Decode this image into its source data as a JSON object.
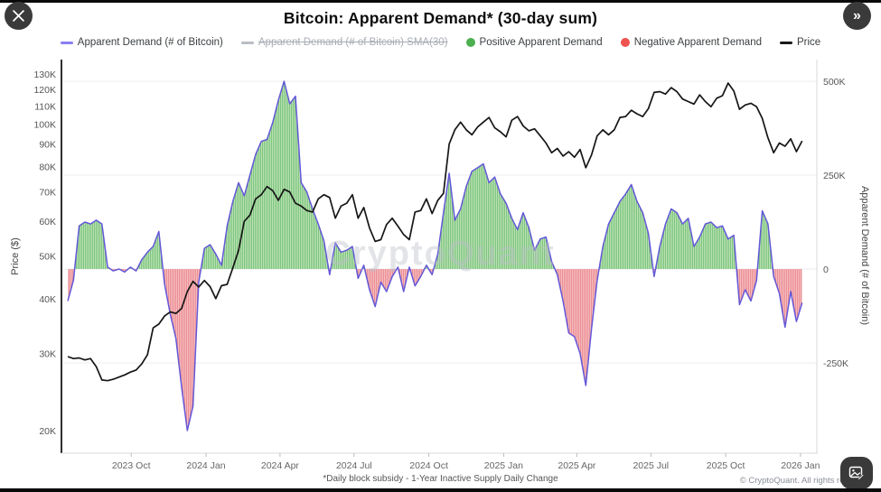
{
  "title": "Bitcoin: Apparent Demand* (30-day sum)",
  "watermark": "CryptoQuant",
  "footnote": "*Daily block subsidy - 1-Year Inactive Supply Daily Change",
  "copyright": "© CryptoQuant. All rights reserved",
  "buttons": {
    "close": "✕",
    "collapse_right": "»"
  },
  "legend": {
    "items": [
      {
        "label": "Apparent Demand (# of Bitcoin)",
        "swatch": "line",
        "color": "#8a7ff0",
        "struck": false
      },
      {
        "label": "Apparent Demand (# of Bitcoin) SMA(30)",
        "swatch": "line",
        "color": "#b9bdc4",
        "struck": true
      },
      {
        "label": "Positive Apparent Demand",
        "swatch": "dot",
        "color": "#4caf50",
        "struck": false
      },
      {
        "label": "Negative Apparent Demand",
        "swatch": "dot",
        "color": "#ef5350",
        "struck": false
      },
      {
        "label": "Price",
        "swatch": "line",
        "color": "#1a1a1a",
        "struck": false
      }
    ]
  },
  "colors": {
    "demand_line": "#6458d8",
    "positive_fill": "#bce2b4",
    "positive_stripe": "#7cc47e",
    "negative_fill": "#f6bcbf",
    "negative_stripe": "#ea8f94",
    "price_line": "#161616",
    "grid": "#ededf1",
    "axis_left": "#2f2f2f",
    "axis_light": "#d9d9de",
    "tick_text": "#555555",
    "x_text": "#666666"
  },
  "chart_data": {
    "type": "area",
    "title": "Bitcoin: Apparent Demand* (30-day sum)",
    "step_days": 7,
    "x_ticks": [
      {
        "label": "2023 Oct",
        "day": 78
      },
      {
        "label": "2024 Jan",
        "day": 170
      },
      {
        "label": "2024 Apr",
        "day": 261
      },
      {
        "label": "2024 Jul",
        "day": 352
      },
      {
        "label": "2024 Oct",
        "day": 444
      },
      {
        "label": "2025 Jan",
        "day": 536
      },
      {
        "label": "2025 Apr",
        "day": 626
      },
      {
        "label": "2025 Jul",
        "day": 717
      },
      {
        "label": "2025 Oct",
        "day": 809
      },
      {
        "label": "2026 Jan",
        "day": 901
      }
    ],
    "price_axis": {
      "title": "Price ($)",
      "scale": "log",
      "ticks": [
        {
          "label": "130K",
          "value": 130
        },
        {
          "label": "120K",
          "value": 120
        },
        {
          "label": "110K",
          "value": 110
        },
        {
          "label": "100K",
          "value": 100
        },
        {
          "label": "90K",
          "value": 90
        },
        {
          "label": "80K",
          "value": 80
        },
        {
          "label": "70K",
          "value": 70
        },
        {
          "label": "60K",
          "value": 60
        },
        {
          "label": "50K",
          "value": 50
        },
        {
          "label": "40K",
          "value": 40
        },
        {
          "label": "30K",
          "value": 30
        },
        {
          "label": "20K",
          "value": 20
        }
      ]
    },
    "demand_axis": {
      "title": "Apparent Demand (# of Bitcoin)",
      "scale": "linear",
      "ticks": [
        {
          "label": "500K",
          "value": 500
        },
        {
          "label": "250K",
          "value": 250
        },
        {
          "label": "0",
          "value": 0
        },
        {
          "label": "-250K",
          "value": -250
        }
      ]
    },
    "series": [
      {
        "name": "Apparent Demand (# of Bitcoin)",
        "unit": "thousand BTC",
        "values": [
          -85,
          -30,
          115,
          125,
          120,
          130,
          120,
          5,
          -5,
          0,
          -8,
          5,
          -5,
          25,
          45,
          60,
          100,
          -40,
          -120,
          -185,
          -315,
          -430,
          -365,
          -35,
          55,
          65,
          40,
          10,
          115,
          180,
          230,
          195,
          250,
          305,
          340,
          345,
          390,
          450,
          500,
          440,
          460,
          230,
          205,
          160,
          120,
          75,
          -15,
          70,
          45,
          50,
          60,
          -25,
          10,
          -55,
          -100,
          -35,
          -60,
          -20,
          5,
          -60,
          5,
          -45,
          -20,
          10,
          -15,
          40,
          150,
          255,
          130,
          160,
          220,
          260,
          270,
          280,
          230,
          245,
          200,
          175,
          135,
          105,
          150,
          110,
          50,
          80,
          85,
          20,
          -15,
          -85,
          -170,
          -180,
          -225,
          -310,
          -160,
          -30,
          60,
          120,
          150,
          180,
          200,
          225,
          180,
          150,
          95,
          -20,
          60,
          120,
          160,
          150,
          120,
          135,
          60,
          85,
          120,
          125,
          110,
          115,
          80,
          90,
          -95,
          -55,
          -85,
          -30,
          155,
          120,
          -20,
          -65,
          -155,
          -60,
          -140,
          -90
        ]
      },
      {
        "name": "Price",
        "unit": "thousand USD",
        "values": [
          29.5,
          29.2,
          29.3,
          29.0,
          29.2,
          28.0,
          26.1,
          26.0,
          26.2,
          26.5,
          26.8,
          27.2,
          27.5,
          28.4,
          29.8,
          34.3,
          35.0,
          36.5,
          37.3,
          37.0,
          38.0,
          41.5,
          43.8,
          42.5,
          44.0,
          42.6,
          40.0,
          42.8,
          43.1,
          47.0,
          51.5,
          60.0,
          62.0,
          67.5,
          69.0,
          72.0,
          70.5,
          67.0,
          71.0,
          70.0,
          66.0,
          65.0,
          63.5,
          63.0,
          67.5,
          69.0,
          68.0,
          61.0,
          65.0,
          66.0,
          69.0,
          61.0,
          64.5,
          58.0,
          54.0,
          54.5,
          59.0,
          61.0,
          58.5,
          56.0,
          54.5,
          63.0,
          63.5,
          67.5,
          62.5,
          67.0,
          69.5,
          90.0,
          97.0,
          101.0,
          97.0,
          94.5,
          98.5,
          101.0,
          103.5,
          98.0,
          96.0,
          93.5,
          102.0,
          104.0,
          99.0,
          96.5,
          97.5,
          94.0,
          90.5,
          86.0,
          88.0,
          84.5,
          86.5,
          84.0,
          87.5,
          79.5,
          85.0,
          94.0,
          97.0,
          94.5,
          97.0,
          103.5,
          104.0,
          107.5,
          105.5,
          104.0,
          108.5,
          118.0,
          118.5,
          117.0,
          121.0,
          118.5,
          114.0,
          112.5,
          111.0,
          116.5,
          112.5,
          109.5,
          114.5,
          116.0,
          124.0,
          119.0,
          108.0,
          110.5,
          111.5,
          109.5,
          103.0,
          93.0,
          86.0,
          90.5,
          89.0,
          92.5,
          86.5,
          91.5
        ]
      }
    ]
  }
}
